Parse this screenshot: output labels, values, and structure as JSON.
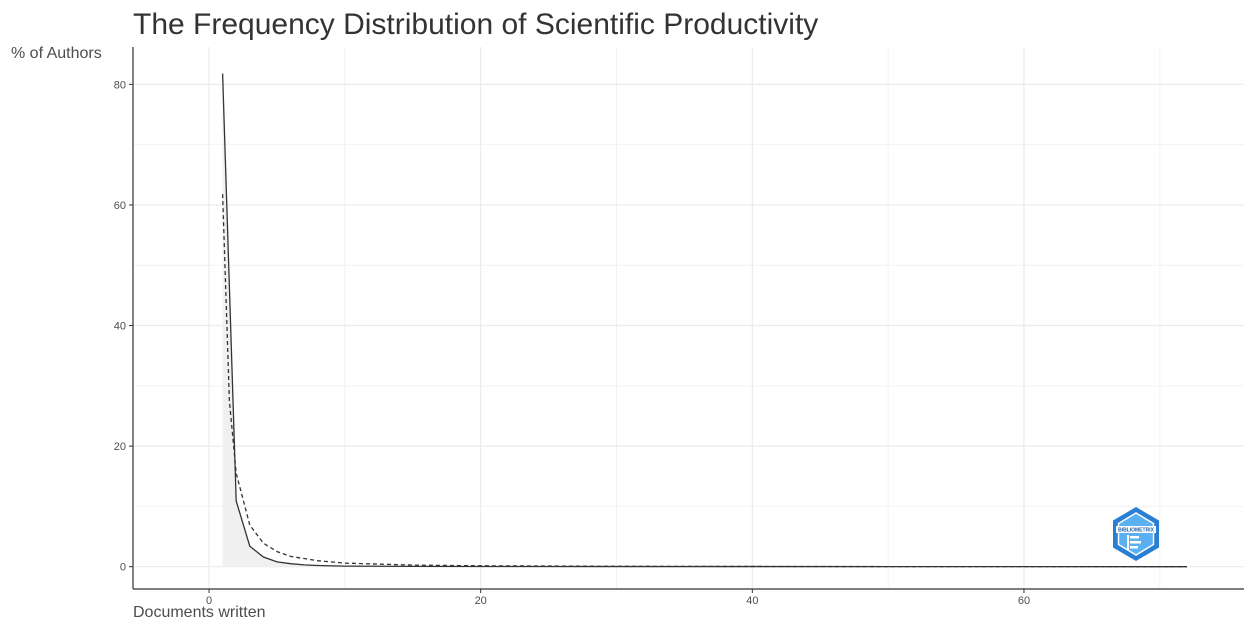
{
  "chart_data": {
    "type": "area",
    "title": "The Frequency Distribution of Scientific Productivity",
    "xlabel": "Documents written",
    "ylabel": "% of Authors",
    "xlim": [
      -5.6,
      76.2
    ],
    "ylim": [
      -3.7,
      86.2
    ],
    "x_ticks": [
      "0",
      "20",
      "40",
      "60"
    ],
    "y_ticks": [
      "0",
      "20",
      "40",
      "60",
      "80"
    ],
    "grid": true,
    "series": [
      {
        "style": "solid",
        "color": "#333333",
        "fill": "#f0f0f0",
        "points": [
          [
            1,
            81.8
          ],
          [
            2,
            10.9
          ],
          [
            3,
            3.4
          ],
          [
            4,
            1.6
          ],
          [
            5,
            0.8
          ],
          [
            6,
            0.5
          ],
          [
            7,
            0.3
          ],
          [
            8,
            0.2
          ],
          [
            10,
            0.1
          ],
          [
            15,
            0.05
          ],
          [
            20,
            0.03
          ],
          [
            72,
            0.0
          ]
        ]
      },
      {
        "style": "dashed",
        "color": "#333333",
        "points": [
          [
            1,
            61.8
          ],
          [
            1.5,
            27.5
          ],
          [
            2,
            15.5
          ],
          [
            3,
            6.9
          ],
          [
            4,
            3.9
          ],
          [
            5,
            2.5
          ],
          [
            6,
            1.7
          ],
          [
            8,
            1.0
          ],
          [
            10,
            0.6
          ],
          [
            15,
            0.27
          ],
          [
            20,
            0.15
          ],
          [
            30,
            0.07
          ],
          [
            50,
            0.02
          ],
          [
            72,
            0.01
          ]
        ]
      }
    ]
  },
  "logo": {
    "name": "bibliometrix-logo",
    "text": "BIBLIOMETRIX"
  }
}
